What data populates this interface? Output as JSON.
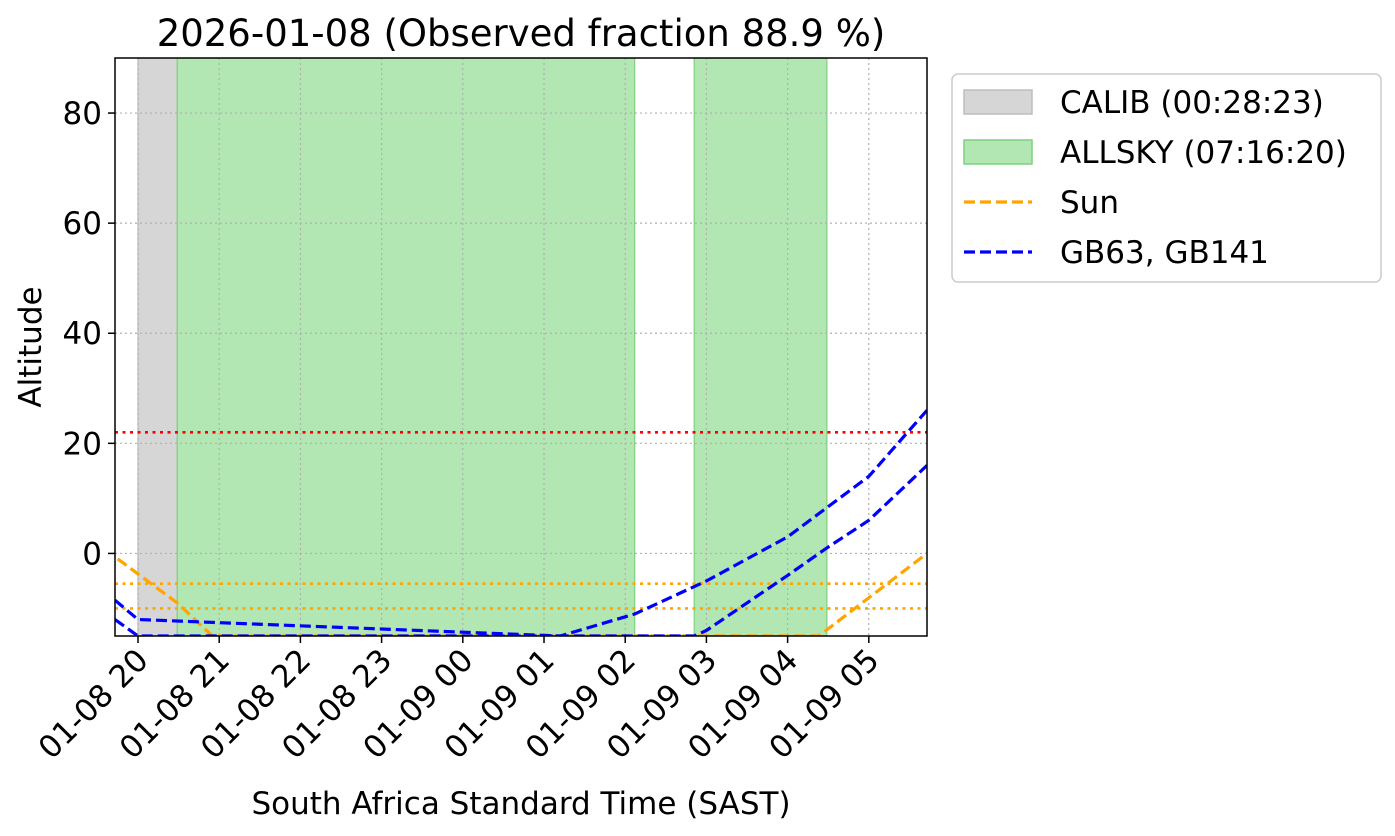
{
  "chart_data": {
    "type": "line",
    "title": "2026-01-08 (Observed fraction 88.9 %)",
    "xlabel": "South Africa Standard Time (SAST)",
    "ylabel": "Altitude",
    "xlim": [
      "2026-01-08 19:43",
      "2026-01-09 05:43"
    ],
    "ylim": [
      -15,
      90
    ],
    "grid": true,
    "legend_position": "outside-right",
    "x_tick_labels": [
      "01-08 20",
      "01-08 21",
      "01-08 22",
      "01-08 23",
      "01-09 00",
      "01-09 01",
      "01-09 02",
      "01-09 03",
      "01-09 04",
      "01-09 05"
    ],
    "x_ticks": [
      "2026-01-08 20:00",
      "2026-01-08 21:00",
      "2026-01-08 22:00",
      "2026-01-08 23:00",
      "2026-01-09 00:00",
      "2026-01-09 01:00",
      "2026-01-09 02:00",
      "2026-01-09 03:00",
      "2026-01-09 04:00",
      "2026-01-09 05:00"
    ],
    "y_ticks": [
      0,
      20,
      40,
      60,
      80
    ],
    "spans": [
      {
        "name": "CALIB (00:28:23)",
        "start": "2026-01-08 20:00",
        "end": "2026-01-08 20:29",
        "color": "#d6d6d6"
      },
      {
        "name": "ALLSKY (07:16:20)",
        "start": "2026-01-08 20:29",
        "end": "2026-01-09 02:07",
        "color": "#b2e6b2"
      },
      {
        "name": "",
        "start": "2026-01-09 02:51",
        "end": "2026-01-09 04:29",
        "color": "#b2e6b2"
      }
    ],
    "series": [
      {
        "name": "Sun",
        "color": "#ffa500",
        "style": "dashed",
        "x": [
          "2026-01-08 19:45",
          "2026-01-08 20:29",
          "2026-01-08 20:55",
          "2026-01-09 04:23",
          "2026-01-09 05:43"
        ],
        "y": [
          -1,
          -9,
          -15,
          -15,
          0
        ]
      },
      {
        "name": "GB63, GB141",
        "color": "#0000ff",
        "style": "dashed",
        "x": [
          "2026-01-08 19:43",
          "2026-01-08 20:00",
          "2026-01-09 01:12",
          "2026-01-09 02:07",
          "2026-01-09 03:00",
          "2026-01-09 04:00",
          "2026-01-09 05:00",
          "2026-01-09 05:43"
        ],
        "y": [
          -8.5,
          -12,
          -15,
          -11,
          -5,
          3,
          14,
          26
        ]
      },
      {
        "name": "",
        "color": "#0000ff",
        "style": "dashed",
        "x": [
          "2026-01-08 19:43",
          "2026-01-08 20:00",
          "2026-01-09 02:51",
          "2026-01-09 03:00",
          "2026-01-09 04:00",
          "2026-01-09 04:29",
          "2026-01-09 05:00",
          "2026-01-09 05:43"
        ],
        "y": [
          -12,
          -15,
          -15,
          -14,
          -4,
          1,
          6,
          16
        ]
      }
    ],
    "hlines": [
      {
        "y": 22,
        "color": "#ff0000",
        "style": "dotted"
      },
      {
        "y": -5.5,
        "color": "#ffa500",
        "style": "dotted"
      },
      {
        "y": -10,
        "color": "#ffa500",
        "style": "dotted"
      }
    ],
    "legend": [
      {
        "label": "CALIB (00:28:23)",
        "kind": "patch",
        "color": "#d6d6d6"
      },
      {
        "label": "ALLSKY (07:16:20)",
        "kind": "patch",
        "color": "#b2e6b2"
      },
      {
        "label": "Sun",
        "kind": "line",
        "color": "#ffa500"
      },
      {
        "label": "GB63, GB141",
        "kind": "line",
        "color": "#0000ff"
      }
    ]
  }
}
